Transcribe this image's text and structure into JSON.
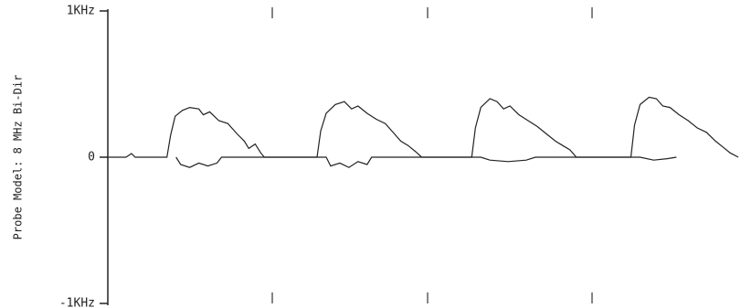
{
  "chart_data": {
    "type": "line",
    "ylabel": "Probe Model: 8 MHz Bi-Dir",
    "ylim": [
      -1000,
      1000
    ],
    "yticks": [
      {
        "value": 1000,
        "label": "1KHz"
      },
      0,
      {
        "value": -1000,
        "label": "-1KHz"
      }
    ],
    "xlim": [
      0,
      693
    ],
    "series": [
      {
        "color": "#222222",
        "x": [
          0,
          20,
          26,
          30,
          65,
          69,
          74,
          82,
          90,
          100,
          105,
          112,
          122,
          132,
          142,
          150,
          155,
          162,
          168,
          172,
          230,
          234,
          240,
          250,
          260,
          268,
          275,
          285,
          295,
          305,
          315,
          322,
          330,
          338,
          345,
          400,
          404,
          410,
          420,
          428,
          435,
          442,
          452,
          462,
          472,
          482,
          492,
          500,
          508,
          515,
          575,
          579,
          585,
          595,
          603,
          610,
          618,
          628,
          638,
          648,
          658,
          668,
          676,
          684,
          693
        ],
        "values": [
          0,
          0,
          25,
          0,
          0,
          150,
          280,
          320,
          340,
          330,
          290,
          310,
          250,
          230,
          160,
          110,
          60,
          90,
          30,
          0,
          0,
          180,
          300,
          360,
          380,
          330,
          350,
          300,
          260,
          230,
          160,
          110,
          80,
          40,
          0,
          0,
          200,
          340,
          400,
          380,
          330,
          350,
          290,
          250,
          210,
          160,
          110,
          80,
          50,
          0,
          0,
          220,
          360,
          410,
          400,
          350,
          340,
          290,
          250,
          200,
          170,
          110,
          70,
          30,
          0
        ]
      },
      {
        "color": "#222222",
        "x": [
          75,
          80,
          90,
          100,
          110,
          120,
          125,
          240,
          245,
          255,
          265,
          275,
          285,
          290,
          410,
          420,
          440,
          460,
          470,
          585,
          600,
          615,
          625
        ],
        "values": [
          0,
          -50,
          -70,
          -40,
          -60,
          -40,
          0,
          0,
          -60,
          -40,
          -70,
          -30,
          -50,
          0,
          0,
          -20,
          -30,
          -20,
          0,
          0,
          -20,
          -10,
          0
        ]
      }
    ]
  }
}
